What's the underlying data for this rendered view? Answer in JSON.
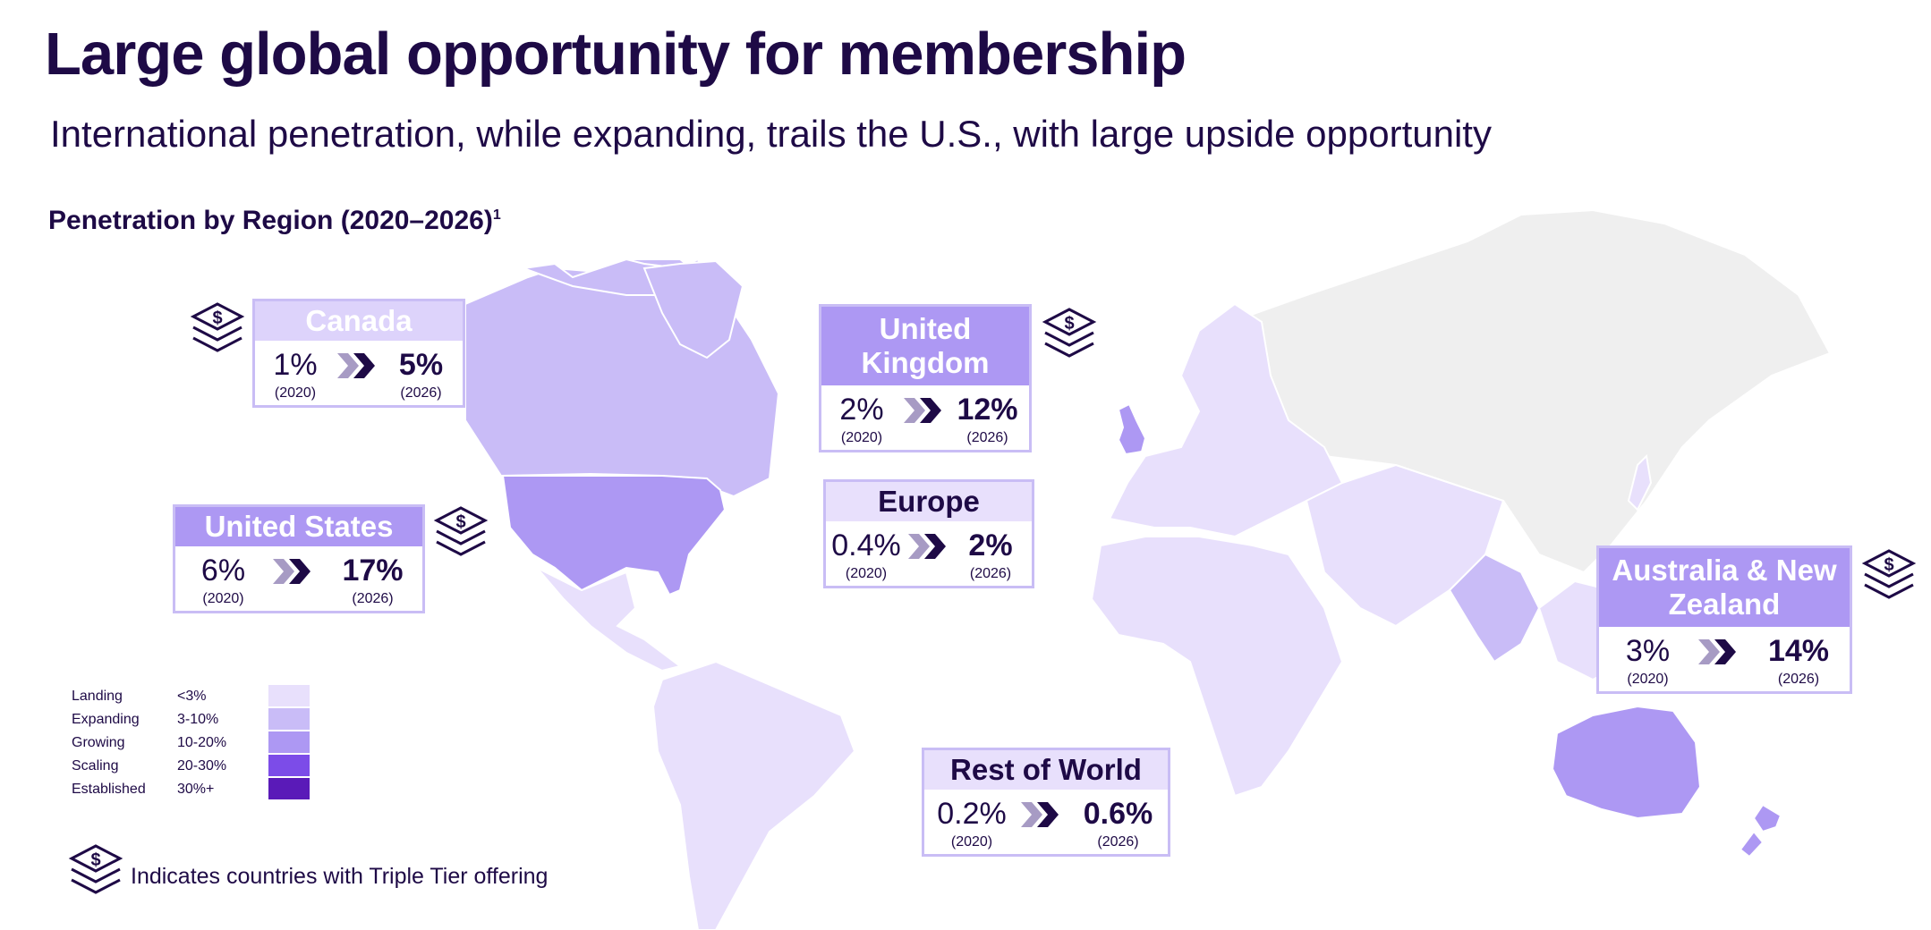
{
  "title": "Large global opportunity for membership",
  "subtitle": "International penetration, while expanding, trails the U.S., with large upside opportunity",
  "section": {
    "title": "Penetration by Region (2020–2026)",
    "footnote_marker": "1"
  },
  "colors": {
    "landing": "#e8e0fc",
    "expanding": "#c9bcf7",
    "growing": "#ad98f3",
    "scaling": "#7c4ce8",
    "established": "#5a1ab8",
    "no_data": "#efefef",
    "accent_text": "#1e0a46"
  },
  "regions": [
    {
      "name": "Canada",
      "value_2020": "1%",
      "value_2026": "5%",
      "label_2020": "(2020)",
      "label_2026": "(2026)",
      "triple_tier": true
    },
    {
      "name": "United Kingdom",
      "value_2020": "2%",
      "value_2026": "12%",
      "label_2020": "(2020)",
      "label_2026": "(2026)",
      "triple_tier": true
    },
    {
      "name": "United States",
      "value_2020": "6%",
      "value_2026": "17%",
      "label_2020": "(2020)",
      "label_2026": "(2026)",
      "triple_tier": true
    },
    {
      "name": "Europe",
      "value_2020": "0.4%",
      "value_2026": "2%",
      "label_2020": "(2020)",
      "label_2026": "(2026)",
      "triple_tier": false
    },
    {
      "name": "Australia & New Zealand",
      "value_2020": "3%",
      "value_2026": "14%",
      "label_2020": "(2020)",
      "label_2026": "(2026)",
      "triple_tier": true
    },
    {
      "name": "Rest of World",
      "value_2020": "0.2%",
      "value_2026": "0.6%",
      "label_2020": "(2020)",
      "label_2026": "(2026)",
      "triple_tier": false
    }
  ],
  "legend": [
    {
      "label": "Landing",
      "range": "<3%"
    },
    {
      "label": "Expanding",
      "range": "3-10%"
    },
    {
      "label": "Growing",
      "range": "10-20%"
    },
    {
      "label": "Scaling",
      "range": "20-30%"
    },
    {
      "label": "Established",
      "range": "30%+"
    }
  ],
  "tier_note": "Indicates countries with Triple Tier offering",
  "icons": {
    "tier": "stacked-dollar-layers-icon",
    "arrow": "double-chevron-right-icon"
  }
}
